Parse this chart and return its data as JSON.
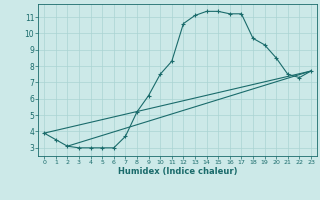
{
  "xlabel": "Humidex (Indice chaleur)",
  "ylabel": "",
  "bg_color": "#cce9e8",
  "grid_color": "#aad4d3",
  "line_color": "#1a6b6b",
  "xlim": [
    -0.5,
    23.5
  ],
  "ylim": [
    2.5,
    11.8
  ],
  "xticks": [
    0,
    1,
    2,
    3,
    4,
    5,
    6,
    7,
    8,
    9,
    10,
    11,
    12,
    13,
    14,
    15,
    16,
    17,
    18,
    19,
    20,
    21,
    22,
    23
  ],
  "yticks": [
    3,
    4,
    5,
    6,
    7,
    8,
    9,
    10,
    11
  ],
  "line1_x": [
    0,
    1,
    2,
    3,
    4,
    5,
    6,
    7,
    8,
    9,
    10,
    11,
    12,
    13,
    14,
    15,
    16,
    17,
    18,
    19,
    20,
    21,
    22,
    23
  ],
  "line1_y": [
    3.9,
    3.5,
    3.1,
    3.0,
    3.0,
    3.0,
    3.0,
    3.7,
    5.2,
    6.2,
    7.5,
    8.3,
    10.6,
    11.1,
    11.35,
    11.35,
    11.2,
    11.2,
    9.7,
    9.3,
    8.5,
    7.5,
    7.3,
    7.7
  ],
  "line2_x": [
    0,
    23
  ],
  "line2_y": [
    3.9,
    7.7
  ],
  "line3_x": [
    2,
    23
  ],
  "line3_y": [
    3.1,
    7.7
  ],
  "figsize": [
    3.2,
    2.0
  ],
  "dpi": 100
}
